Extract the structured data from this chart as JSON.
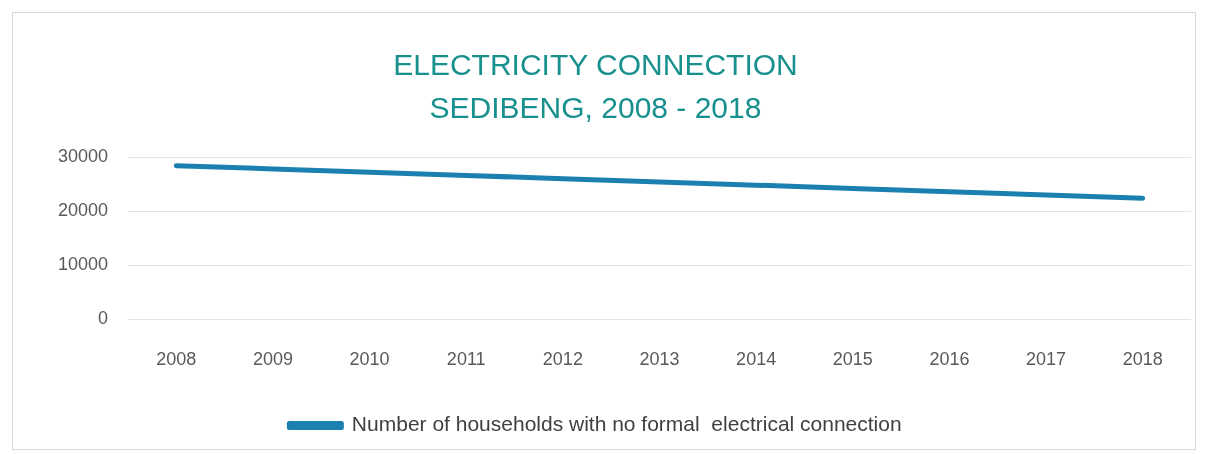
{
  "chart_data": {
    "type": "line",
    "title": "ELECTRICITY CONNECTION",
    "subtitle": "SEDIBENG, 2008 - 2018",
    "categories": [
      "2008",
      "2009",
      "2010",
      "2011",
      "2012",
      "2013",
      "2014",
      "2015",
      "2016",
      "2017",
      "2018"
    ],
    "series": [
      {
        "name": "Number of households with no formal  electrical connection",
        "color": "#1b80b0",
        "values": [
          28400,
          27800,
          27200,
          26600,
          26000,
          25400,
          24800,
          24200,
          23600,
          23000,
          22400
        ]
      }
    ],
    "ylim": [
      0,
      30000
    ],
    "yticks": [
      0,
      10000,
      20000,
      30000
    ],
    "grid": "y",
    "legend": "bottom"
  }
}
